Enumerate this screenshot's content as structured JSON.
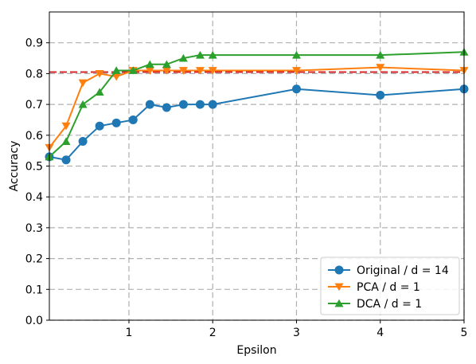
{
  "chart_data": {
    "type": "line",
    "xlabel": "Epsilon",
    "ylabel": "Accuracy",
    "xlim": [
      0.05,
      5.0
    ],
    "ylim": [
      0.0,
      1.0
    ],
    "x_ticks": [
      1,
      2,
      3,
      4,
      5
    ],
    "y_ticks": [
      0.0,
      0.1,
      0.2,
      0.3,
      0.4,
      0.5,
      0.6,
      0.7,
      0.8,
      0.9
    ],
    "x_tick_labels": [
      "1",
      "2",
      "3",
      "4",
      "5"
    ],
    "y_tick_labels": [
      "0.0",
      "0.1",
      "0.2",
      "0.3",
      "0.4",
      "0.5",
      "0.6",
      "0.7",
      "0.8",
      "0.9"
    ],
    "grid": true,
    "grid_style": "dashed",
    "legend_position": "bottom-right",
    "reference_line": {
      "y": 0.805,
      "color": "#d62728",
      "style": "dashed"
    },
    "series": [
      {
        "name": "Original / d = 14",
        "color": "#1f77b4",
        "marker": "circle",
        "x": [
          0.05,
          0.25,
          0.45,
          0.65,
          0.85,
          1.05,
          1.25,
          1.45,
          1.65,
          1.85,
          2.0,
          3.0,
          4.0,
          5.0
        ],
        "values": [
          0.53,
          0.52,
          0.58,
          0.63,
          0.64,
          0.65,
          0.7,
          0.69,
          0.7,
          0.7,
          0.7,
          0.75,
          0.73,
          0.75
        ]
      },
      {
        "name": "PCA / d = 1",
        "color": "#ff7f0e",
        "marker": "triangle-down",
        "x": [
          0.05,
          0.25,
          0.45,
          0.65,
          0.85,
          1.05,
          1.25,
          1.45,
          1.65,
          1.85,
          2.0,
          3.0,
          4.0,
          5.0
        ],
        "values": [
          0.56,
          0.63,
          0.77,
          0.8,
          0.79,
          0.81,
          0.81,
          0.81,
          0.81,
          0.81,
          0.81,
          0.81,
          0.82,
          0.81
        ]
      },
      {
        "name": "DCA / d = 1",
        "color": "#2ca02c",
        "marker": "triangle-up",
        "x": [
          0.05,
          0.25,
          0.45,
          0.65,
          0.85,
          1.05,
          1.25,
          1.45,
          1.65,
          1.85,
          2.0,
          3.0,
          4.0,
          5.0
        ],
        "values": [
          0.53,
          0.58,
          0.7,
          0.74,
          0.81,
          0.81,
          0.83,
          0.83,
          0.85,
          0.86,
          0.86,
          0.86,
          0.86,
          0.87
        ]
      }
    ]
  }
}
